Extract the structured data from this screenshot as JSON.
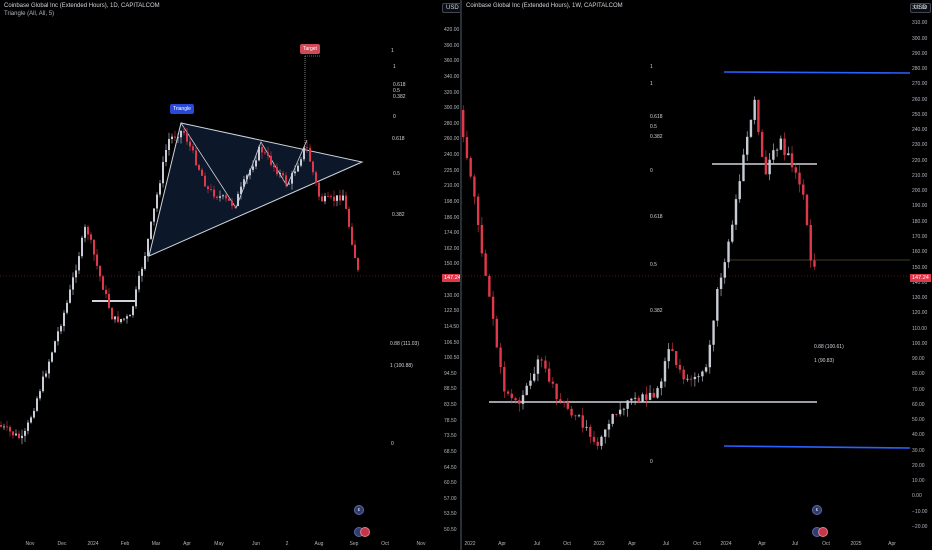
{
  "left_chart": {
    "title": "Coinbase Global Inc (Extended Hours), 1D, CAPITALCOM",
    "indicator": "Triangle (All, All, 5)",
    "currency": "USD",
    "price_ticks": [
      "420.00",
      "390.00",
      "360.00",
      "340.00",
      "320.00",
      "300.00",
      "280.00",
      "260.00",
      "240.00",
      "225.00",
      "210.00",
      "198.00",
      "186.00",
      "174.00",
      "162.00",
      "150.00",
      "140.00",
      "130.00",
      "122.50",
      "114.50",
      "106.50",
      "100.50",
      "94.50",
      "88.50",
      "83.50",
      "78.50",
      "73.50",
      "68.50",
      "64.50",
      "60.50",
      "57.00",
      "53.50",
      "50.50"
    ],
    "last_price": "147.24",
    "time_ticks": [
      "Nov",
      "Dec",
      "2024",
      "Feb",
      "Mar",
      "Apr",
      "May",
      "Jun",
      "2",
      "Aug",
      "Sep",
      "Oct",
      "Nov"
    ],
    "pattern_label": "Triangle",
    "target_label": "Target",
    "fib_labels_upper": [
      "1",
      "1",
      "0.618",
      "0.5",
      "0.382"
    ],
    "fib_labels_mid": [
      "0",
      "0.618",
      "0.5",
      "0.382"
    ],
    "fib_labels_lower": [
      "0.88 (111.03)",
      "1 (100.88)",
      "0"
    ],
    "icon_badges": [
      "ε"
    ]
  },
  "right_chart": {
    "title": "Coinbase Global Inc (Extended Hours), 1W, CAPITALCOM",
    "currency": "USD",
    "price_ticks": [
      "320.00",
      "310.00",
      "300.00",
      "290.00",
      "280.00",
      "270.00",
      "260.00",
      "250.00",
      "240.00",
      "230.00",
      "220.00",
      "210.00",
      "200.00",
      "190.00",
      "180.00",
      "170.00",
      "160.00",
      "150.00",
      "140.00",
      "130.00",
      "120.00",
      "110.00",
      "100.00",
      "90.00",
      "80.00",
      "70.00",
      "60.00",
      "50.00",
      "40.00",
      "30.00",
      "20.00",
      "10.00",
      "0.00",
      "−10.00",
      "−20.00"
    ],
    "last_price": "147.24",
    "time_ticks": [
      "2022",
      "Apr",
      "Jul",
      "Oct",
      "2023",
      "Apr",
      "Jul",
      "Oct",
      "2024",
      "Apr",
      "Jul",
      "Oct",
      "2025",
      "Apr"
    ],
    "fib_labels": [
      "1",
      "1",
      "0.618",
      "0.5",
      "0.382",
      "0",
      "0.618",
      "0.5",
      "0.382",
      "0"
    ],
    "fib_labels_lower": [
      "0.88 (100.61)",
      "1 (90.83)"
    ],
    "icon_badges": [
      "ε"
    ]
  },
  "colors": {
    "background": "#000000",
    "up_candle": "#c8ccd6",
    "down_candle": "#e0384b",
    "triangle_fill": "#0d1a2e",
    "triangle_stroke": "#cfd3dc",
    "blue_line": "#2962ff",
    "white_line": "#d1d4dc",
    "badge_blue": "#2948d6",
    "badge_red": "#d14a57"
  }
}
